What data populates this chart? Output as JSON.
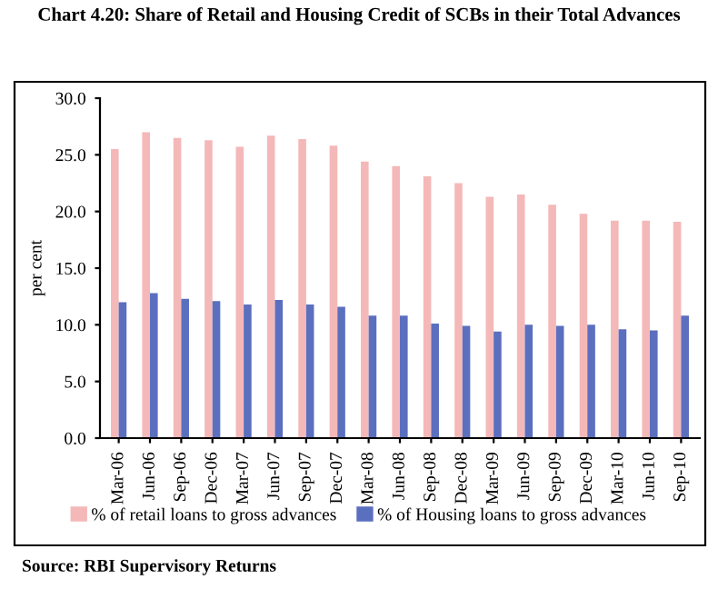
{
  "chart_data": {
    "type": "bar",
    "title": "Chart 4.20: Share of Retail and Housing Credit of SCBs in their Total Advances",
    "ylabel": "per cent",
    "categories": [
      "Mar-06",
      "Jun-06",
      "Sep-06",
      "Dec-06",
      "Mar-07",
      "Jun-07",
      "Sep-07",
      "Dec-07",
      "Mar-08",
      "Jun-08",
      "Sep-08",
      "Dec-08",
      "Mar-09",
      "Jun-09",
      "Sep-09",
      "Dec-09",
      "Mar-10",
      "Jun-10",
      "Sep-10"
    ],
    "series": [
      {
        "name": "% of retail loans to gross advances",
        "color": "#f4b8b8",
        "values": [
          25.5,
          27.0,
          26.5,
          26.3,
          25.7,
          26.7,
          26.4,
          25.8,
          24.4,
          24.0,
          23.1,
          22.5,
          21.3,
          21.5,
          20.6,
          19.8,
          19.2,
          19.2,
          19.1
        ]
      },
      {
        "name": "% of Housing loans to gross advances",
        "color": "#5b6fbf",
        "values": [
          12.0,
          12.8,
          12.3,
          12.1,
          11.8,
          12.2,
          11.8,
          11.6,
          10.8,
          10.8,
          10.1,
          9.9,
          9.4,
          10.0,
          9.9,
          10.0,
          9.6,
          9.5,
          10.8
        ]
      }
    ],
    "ylim": [
      0,
      30
    ],
    "yticks": [
      {
        "value": 0,
        "label": "0.0"
      },
      {
        "value": 5,
        "label": "5.0"
      },
      {
        "value": 10,
        "label": "10.0"
      },
      {
        "value": 15,
        "label": "15.0"
      },
      {
        "value": 20,
        "label": "20.0"
      },
      {
        "value": 25,
        "label": "25.0"
      },
      {
        "value": 30,
        "label": "30.0"
      }
    ],
    "grid": false,
    "legend": "bottom",
    "annotations": [
      "Source: RBI Supervisory Returns"
    ]
  }
}
